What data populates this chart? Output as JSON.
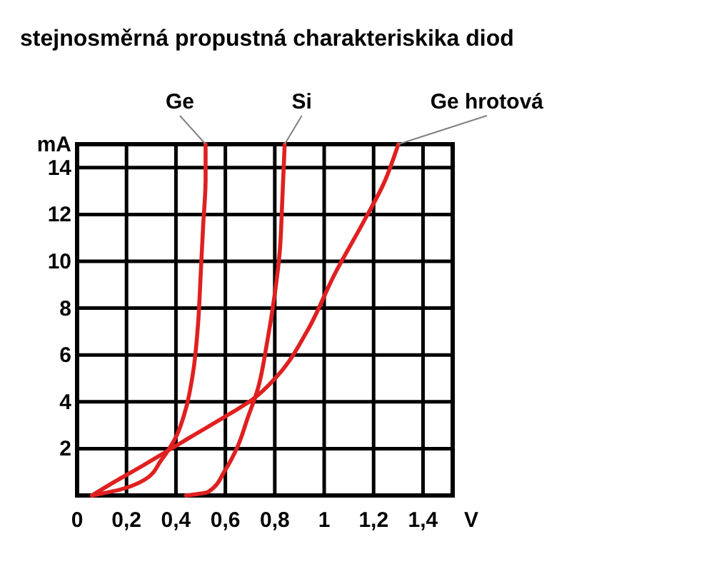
{
  "chart_data": {
    "type": "line",
    "title": "stejnosměrná propustná charakteriskika diod",
    "xlabel": "V",
    "ylabel": "mA",
    "xlim": [
      0,
      1.52
    ],
    "ylim": [
      0,
      15
    ],
    "xticks": [
      {
        "value": 0,
        "label": "0"
      },
      {
        "value": 0.2,
        "label": "0,2"
      },
      {
        "value": 0.4,
        "label": "0,4"
      },
      {
        "value": 0.6,
        "label": "0,6"
      },
      {
        "value": 0.8,
        "label": "0,8"
      },
      {
        "value": 1,
        "label": "1"
      },
      {
        "value": 1.2,
        "label": "1,2"
      },
      {
        "value": 1.4,
        "label": "1,4"
      }
    ],
    "yticks": [
      2,
      4,
      6,
      8,
      10,
      12,
      14
    ],
    "grid": true,
    "legend": false,
    "marker": "none",
    "line_style": "solid",
    "series": [
      {
        "name": "Ge",
        "color": "#e02020",
        "x": [
          0.06,
          0.17,
          0.27,
          0.34,
          0.4,
          0.44,
          0.47,
          0.49,
          0.5,
          0.51,
          0.52,
          0.52
        ],
        "values": [
          0,
          0.24,
          0.65,
          1.5,
          2.5,
          3.7,
          5.3,
          7.4,
          9.4,
          11.5,
          13.5,
          15
        ]
      },
      {
        "name": "Si",
        "color": "#e02020",
        "x": [
          0.44,
          0.53,
          0.6,
          0.65,
          0.69,
          0.73,
          0.77,
          0.8,
          0.82,
          0.83,
          0.84
        ],
        "values": [
          0,
          0.15,
          1.1,
          2.1,
          3.3,
          4.5,
          6.6,
          8.6,
          10.4,
          12.5,
          15
        ]
      },
      {
        "name": "Ge hrotová",
        "color": "#e02020",
        "x": [
          0.06,
          0.13,
          0.27,
          0.46,
          0.62,
          0.71,
          0.81,
          0.93,
          1.04,
          1.16,
          1.24,
          1.3
        ],
        "values": [
          0,
          0.45,
          1.3,
          2.5,
          3.5,
          4.1,
          5.1,
          7.0,
          9.4,
          11.7,
          13.3,
          15
        ]
      }
    ]
  }
}
